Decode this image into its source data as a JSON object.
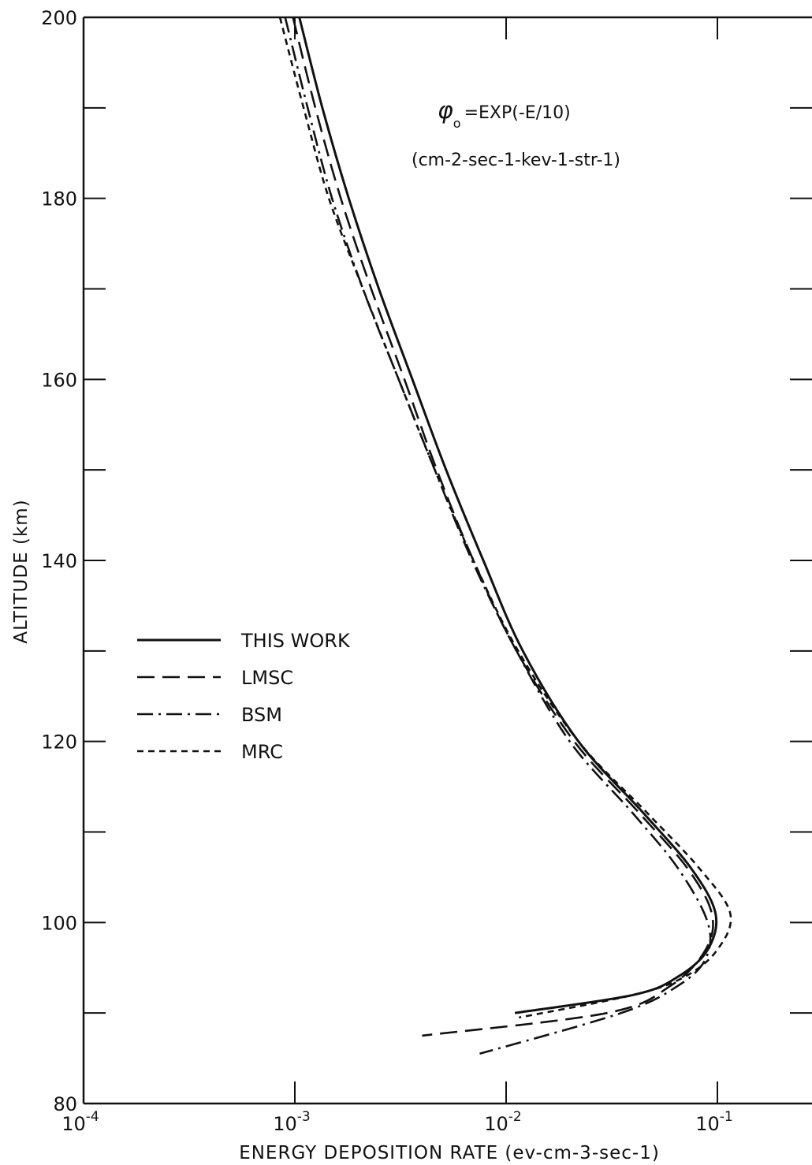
{
  "chart_data": {
    "type": "line",
    "title": "",
    "annotation": {
      "formula_symbol": "φ",
      "formula_sub": "o",
      "formula_text": "=EXP(-E/10)",
      "units": "(cm-2-sec-1-kev-1-str-1)"
    },
    "xlabel": "ENERGY DEPOSITION RATE (ev-cm-3-sec-1)",
    "ylabel": "ALTITUDE (km)",
    "x_scale": "log",
    "xlim": [
      0.0001,
      0.3
    ],
    "ylim": [
      80,
      200
    ],
    "x_tick_labels": [
      {
        "value": 0.0001,
        "base": "10",
        "exp": "-4"
      },
      {
        "value": 0.001,
        "base": "10",
        "exp": "-3"
      },
      {
        "value": 0.01,
        "base": "10",
        "exp": "-2"
      },
      {
        "value": 0.1,
        "base": "10",
        "exp": "-1"
      }
    ],
    "y_tick_labels": [
      {
        "value": 80,
        "label": "80"
      },
      {
        "value": 100,
        "label": "100"
      },
      {
        "value": 120,
        "label": "120"
      },
      {
        "value": 140,
        "label": "140"
      },
      {
        "value": 160,
        "label": "160"
      },
      {
        "value": 180,
        "label": "180"
      },
      {
        "value": 200,
        "label": "200"
      }
    ],
    "y_minor_ticks": [
      90,
      110,
      130,
      150,
      170,
      190
    ],
    "grid": false,
    "legend_position": "middle-left",
    "series": [
      {
        "name": "THIS WORK",
        "style": "solid",
        "points": [
          [
            0.00105,
            200
          ],
          [
            0.00135,
            190
          ],
          [
            0.0018,
            180
          ],
          [
            0.0025,
            170
          ],
          [
            0.0036,
            160
          ],
          [
            0.0052,
            150
          ],
          [
            0.0078,
            140
          ],
          [
            0.012,
            130
          ],
          [
            0.022,
            120
          ],
          [
            0.045,
            112
          ],
          [
            0.075,
            106
          ],
          [
            0.098,
            101
          ],
          [
            0.09,
            97
          ],
          [
            0.065,
            94
          ],
          [
            0.04,
            92
          ],
          [
            0.011,
            90
          ]
        ]
      },
      {
        "name": "LMSC",
        "style": "dashed",
        "points": [
          [
            0.00098,
            200
          ],
          [
            0.00125,
            190
          ],
          [
            0.00165,
            180
          ],
          [
            0.0023,
            170
          ],
          [
            0.0033,
            160
          ],
          [
            0.0047,
            150
          ],
          [
            0.007,
            140
          ],
          [
            0.0112,
            130
          ],
          [
            0.021,
            120
          ],
          [
            0.043,
            112
          ],
          [
            0.072,
            106
          ],
          [
            0.094,
            101
          ],
          [
            0.088,
            97
          ],
          [
            0.06,
            93
          ],
          [
            0.03,
            90
          ],
          [
            0.004,
            87.5
          ]
        ]
      },
      {
        "name": "BSM",
        "style": "dash-dot",
        "points": [
          [
            0.0009,
            200
          ],
          [
            0.00115,
            190
          ],
          [
            0.0015,
            180
          ],
          [
            0.0021,
            170
          ],
          [
            0.0031,
            160
          ],
          [
            0.0046,
            150
          ],
          [
            0.0069,
            140
          ],
          [
            0.0112,
            130
          ],
          [
            0.02,
            120
          ],
          [
            0.04,
            112
          ],
          [
            0.065,
            106
          ],
          [
            0.09,
            100
          ],
          [
            0.088,
            96
          ],
          [
            0.065,
            93
          ],
          [
            0.035,
            90
          ],
          [
            0.0075,
            85.5
          ]
        ]
      },
      {
        "name": "MRC",
        "style": "dotted",
        "points": [
          [
            0.00085,
            200
          ],
          [
            0.0011,
            190
          ],
          [
            0.00145,
            180
          ],
          [
            0.0021,
            170
          ],
          [
            0.0031,
            160
          ],
          [
            0.0046,
            150
          ],
          [
            0.007,
            140
          ],
          [
            0.0114,
            130
          ],
          [
            0.022,
            120
          ],
          [
            0.047,
            112
          ],
          [
            0.082,
            106
          ],
          [
            0.115,
            101
          ],
          [
            0.1,
            97
          ],
          [
            0.07,
            94
          ],
          [
            0.04,
            92
          ],
          [
            0.0115,
            89.5
          ]
        ]
      }
    ]
  }
}
